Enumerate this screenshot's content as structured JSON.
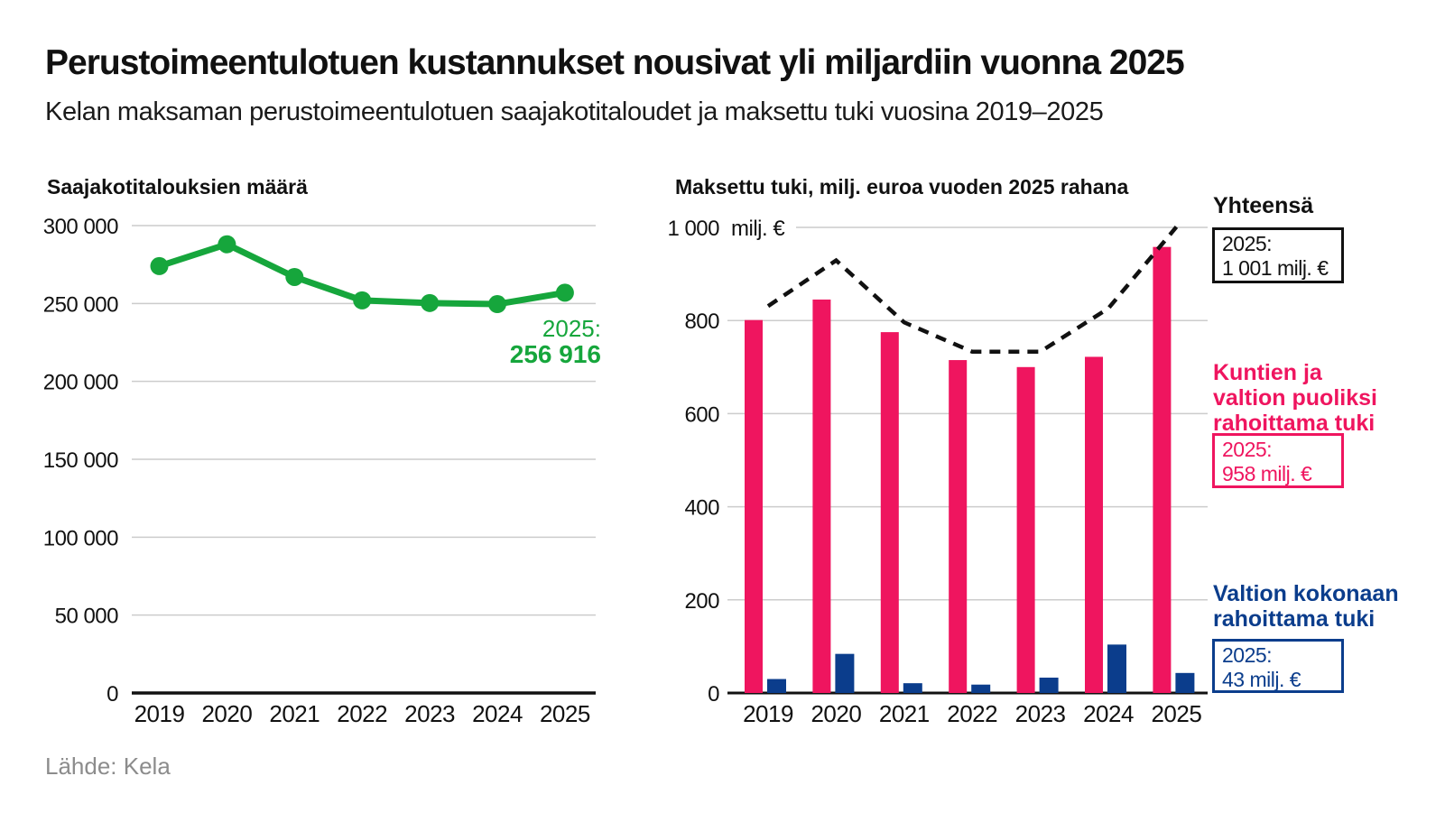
{
  "header": {
    "title": "Perustoimeentulotuen kustannukset nousivat yli miljardiin vuonna 2025",
    "subtitle": "Kelan maksaman perustoimeentulotuen saajakotitaloudet ja maksettu tuki vuosina 2019–2025"
  },
  "footer": {
    "source": "Lähde: Kela"
  },
  "colors": {
    "green": "#16a63c",
    "pink": "#ef155f",
    "blue": "#0b3d8c",
    "grid": "#cccccc",
    "axis": "#111111",
    "text": "#111111",
    "muted": "#8c8c8c"
  },
  "chart_data": [
    {
      "type": "line",
      "title": "Saajakotitalouksien määrä",
      "categories": [
        "2019",
        "2020",
        "2021",
        "2022",
        "2023",
        "2024",
        "2025"
      ],
      "values": [
        274000,
        288000,
        267000,
        252000,
        250300,
        249600,
        256916
      ],
      "ylim": [
        0,
        300000
      ],
      "grid": true,
      "yticks": [
        {
          "value": 300000,
          "label": "300 000"
        },
        {
          "value": 250000,
          "label": "250 000"
        },
        {
          "value": 200000,
          "label": "200 000"
        },
        {
          "value": 150000,
          "label": "150 000"
        },
        {
          "value": 100000,
          "label": "100 000"
        },
        {
          "value": 50000,
          "label": "50 000"
        },
        {
          "value": 0,
          "label": "0"
        }
      ],
      "annotation": {
        "year_label": "2025:",
        "value_label": "256 916"
      }
    },
    {
      "type": "bar",
      "title": "Maksettu tuki, milj. euroa vuoden 2025 rahana",
      "categories": [
        "2019",
        "2020",
        "2021",
        "2022",
        "2023",
        "2024",
        "2025"
      ],
      "series": [
        {
          "name": "Kuntien ja valtion puoliksi rahoittama tuki",
          "color_key": "pink",
          "values": [
            801,
            845,
            775,
            715,
            700,
            722,
            958
          ]
        },
        {
          "name": "Valtion kokonaan rahoittama tuki",
          "color_key": "blue",
          "values": [
            30,
            84,
            21,
            18,
            33,
            104,
            43
          ]
        }
      ],
      "total_line": {
        "name": "Yhteensä",
        "style": "dashed",
        "values": [
          831,
          929,
          796,
          733,
          733,
          826,
          1001
        ]
      },
      "ylim": [
        0,
        1000
      ],
      "grid": true,
      "unit_label": "milj. €",
      "yticks": [
        {
          "value": 1000,
          "label": "1 000"
        },
        {
          "value": 800,
          "label": "800"
        },
        {
          "value": 600,
          "label": "600"
        },
        {
          "value": 400,
          "label": "400"
        },
        {
          "value": 200,
          "label": "200"
        },
        {
          "value": 0,
          "label": "0"
        }
      ],
      "legend": {
        "total": {
          "label": "Yhteensä",
          "box": "2025:\n1 001 milj. €"
        },
        "municipal": {
          "label": "Kuntien ja\nvaltion puoliksi\nrahoittama tuki",
          "box": "2025:\n958 milj. €"
        },
        "state": {
          "label": "Valtion kokonaan\nrahoittama tuki",
          "box": "2025:\n43 milj. €"
        }
      }
    }
  ]
}
